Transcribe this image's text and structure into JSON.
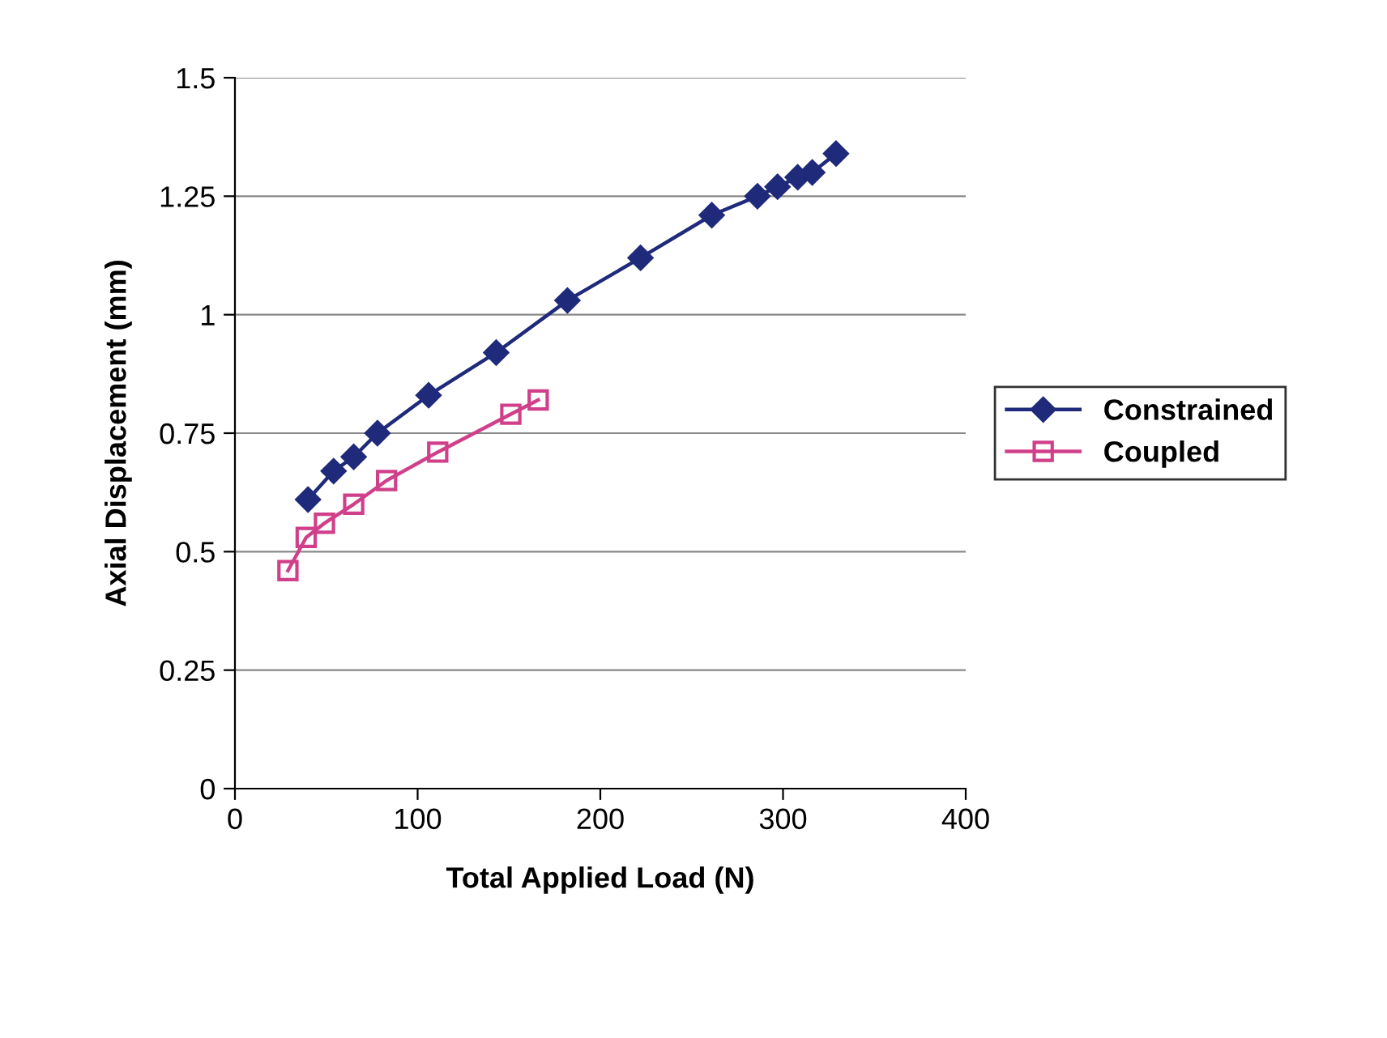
{
  "chart_data": {
    "type": "line",
    "xlabel": "Total Applied Load (N)",
    "ylabel": "Axial Displacement (mm)",
    "xlim": [
      0,
      400
    ],
    "xticks": [
      0,
      100,
      200,
      300,
      400
    ],
    "ylim": [
      0,
      1.5
    ],
    "yticks": [
      0,
      0.25,
      0.5,
      0.75,
      1,
      1.25,
      1.5
    ],
    "grid": "y",
    "legend": "right",
    "line_style": "solid",
    "series": [
      {
        "name": "Constrained",
        "color": "#1f2a7a",
        "marker": "diamond",
        "x": [
          40,
          54,
          65,
          78,
          106,
          143,
          182,
          222,
          261,
          286,
          297,
          308,
          316,
          329
        ],
        "values": [
          0.61,
          0.67,
          0.7,
          0.75,
          0.83,
          0.92,
          1.03,
          1.12,
          1.21,
          1.25,
          1.27,
          1.29,
          1.3,
          1.34
        ]
      },
      {
        "name": "Coupled",
        "color": "#d0408a",
        "marker": "square",
        "x": [
          29,
          39,
          49,
          65,
          83,
          111,
          151,
          166
        ],
        "values": [
          0.46,
          0.53,
          0.56,
          0.6,
          0.65,
          0.71,
          0.79,
          0.82
        ]
      }
    ]
  }
}
